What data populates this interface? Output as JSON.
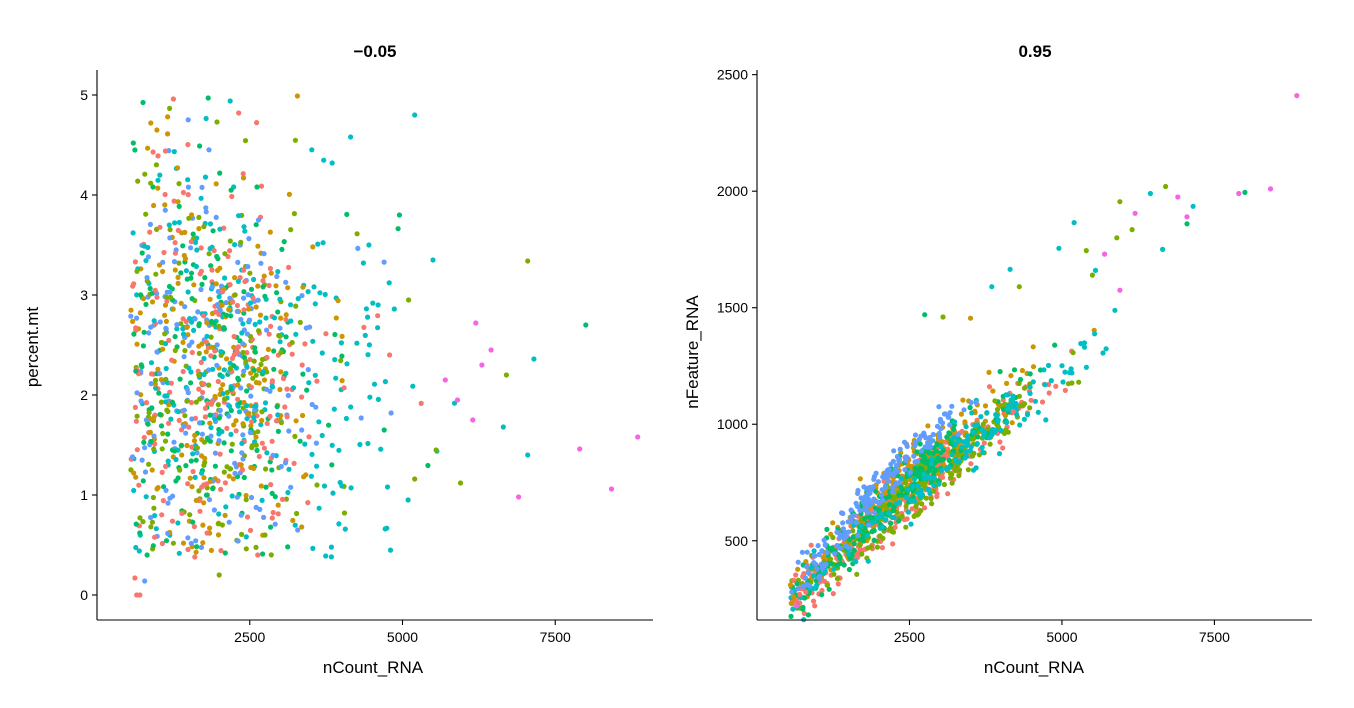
{
  "chart_data": [
    {
      "type": "scatter",
      "title": "−0.05",
      "xlabel": "nCount_RNA",
      "ylabel": "percent.mt",
      "xlim": [
        0,
        9100
      ],
      "ylim": [
        -0.25,
        5.25
      ],
      "xticks": [
        2500,
        5000,
        7500
      ],
      "xtick_labels": [
        "2500",
        "5000",
        "7500"
      ],
      "yticks": [
        0,
        1,
        2,
        3,
        4,
        5
      ],
      "ytick_labels": [
        "0",
        "1",
        "2",
        "3",
        "4",
        "5"
      ],
      "grid": false,
      "legend": "none",
      "colors": [
        "#F8766D",
        "#CD9600",
        "#7CAE00",
        "#00BE67",
        "#00BFC4",
        "#619CFF",
        "#F564E3"
      ],
      "points": [
        {
          "x": 8850,
          "y": 1.58,
          "c": 6
        },
        {
          "x": 8420,
          "y": 1.06,
          "c": 6
        },
        {
          "x": 7900,
          "y": 1.46,
          "c": 6
        },
        {
          "x": 6900,
          "y": 0.98,
          "c": 6
        },
        {
          "x": 6200,
          "y": 2.72,
          "c": 6
        },
        {
          "x": 6450,
          "y": 2.45,
          "c": 6
        },
        {
          "x": 6150,
          "y": 1.75,
          "c": 6
        },
        {
          "x": 5900,
          "y": 1.95,
          "c": 6
        },
        {
          "x": 5700,
          "y": 2.15,
          "c": 6
        },
        {
          "x": 6300,
          "y": 2.3,
          "c": 6
        },
        {
          "x": 7050,
          "y": 3.34,
          "c": 2
        },
        {
          "x": 8000,
          "y": 2.7,
          "c": 3
        },
        {
          "x": 7150,
          "y": 2.36,
          "c": 4
        },
        {
          "x": 7050,
          "y": 1.4,
          "c": 4
        },
        {
          "x": 6650,
          "y": 1.68,
          "c": 4
        },
        {
          "x": 6700,
          "y": 2.2,
          "c": 2
        },
        {
          "x": 5200,
          "y": 4.8,
          "c": 4
        },
        {
          "x": 4150,
          "y": 4.58,
          "c": 4
        },
        {
          "x": 3850,
          "y": 4.32,
          "c": 4
        },
        {
          "x": 4950,
          "y": 3.8,
          "c": 3
        },
        {
          "x": 3280,
          "y": 4.99,
          "c": 1
        },
        {
          "x": 1250,
          "y": 4.96,
          "c": 0
        },
        {
          "x": 1820,
          "y": 4.97,
          "c": 3
        },
        {
          "x": 2180,
          "y": 4.94,
          "c": 4
        },
        {
          "x": 2320,
          "y": 4.82,
          "c": 0
        },
        {
          "x": 980,
          "y": 4.65,
          "c": 1
        },
        {
          "x": 880,
          "y": 4.72,
          "c": 1
        },
        {
          "x": 1120,
          "y": 4.44,
          "c": 0
        },
        {
          "x": 1680,
          "y": 4.49,
          "c": 3
        },
        {
          "x": 620,
          "y": 4.45,
          "c": 3
        },
        {
          "x": 5950,
          "y": 1.12,
          "c": 2
        },
        {
          "x": 5550,
          "y": 1.45,
          "c": 2
        },
        {
          "x": 5200,
          "y": 1.16,
          "c": 2
        },
        {
          "x": 4700,
          "y": 1.65,
          "c": 3
        },
        {
          "x": 5100,
          "y": 2.95,
          "c": 2
        },
        {
          "x": 5500,
          "y": 3.35,
          "c": 4
        },
        {
          "x": 4450,
          "y": 3.5,
          "c": 4
        },
        {
          "x": 4600,
          "y": 2.9,
          "c": 4
        },
        {
          "x": 650,
          "y": 0.0,
          "c": 0
        },
        {
          "x": 700,
          "y": 0.0,
          "c": 0
        },
        {
          "x": 620,
          "y": 0.17,
          "c": 0
        },
        {
          "x": 780,
          "y": 0.14,
          "c": 5
        },
        {
          "x": 2000,
          "y": 0.2,
          "c": 2
        },
        {
          "x": 820,
          "y": 0.4,
          "c": 3
        },
        {
          "x": 1600,
          "y": 0.38,
          "c": 0
        },
        {
          "x": 2100,
          "y": 0.42,
          "c": 3
        },
        {
          "x": 2750,
          "y": 0.6,
          "c": 2
        },
        {
          "x": 3350,
          "y": 0.68,
          "c": 1
        },
        {
          "x": 4050,
          "y": 0.82,
          "c": 2
        },
        {
          "x": 3600,
          "y": 1.1,
          "c": 2
        },
        {
          "x": 600,
          "y": 1.22,
          "c": 1
        },
        {
          "x": 700,
          "y": 0.62,
          "c": 3
        }
      ],
      "clusters": [
        {
          "cx": 2000,
          "cy": 2.0,
          "sx": 750,
          "sy": 0.85,
          "n": 520
        },
        {
          "cx": 1700,
          "cy": 2.7,
          "sx": 650,
          "sy": 1.0,
          "n": 220
        },
        {
          "cx": 3100,
          "cy": 2.2,
          "sx": 1000,
          "sy": 0.9,
          "n": 230
        },
        {
          "cx": 1100,
          "cy": 2.4,
          "sx": 450,
          "sy": 1.2,
          "n": 170
        }
      ]
    },
    {
      "type": "scatter",
      "title": "0.95",
      "xlabel": "nCount_RNA",
      "ylabel": "nFeature_RNA",
      "xlim": [
        0,
        9100
      ],
      "ylim": [
        160,
        2520
      ],
      "xticks": [
        2500,
        5000,
        7500
      ],
      "xtick_labels": [
        "2500",
        "5000",
        "7500"
      ],
      "yticks": [
        500,
        1000,
        1500,
        2000,
        2500
      ],
      "ytick_labels": [
        "500",
        "1000",
        "1500",
        "2000",
        "2500"
      ],
      "grid": false,
      "legend": "none",
      "colors": [
        "#F8766D",
        "#CD9600",
        "#7CAE00",
        "#00BE67",
        "#00BFC4",
        "#619CFF",
        "#F564E3"
      ],
      "points": [
        {
          "x": 8850,
          "y": 2410,
          "c": 6
        },
        {
          "x": 8420,
          "y": 2010,
          "c": 6
        },
        {
          "x": 7900,
          "y": 1990,
          "c": 6
        },
        {
          "x": 8000,
          "y": 1995,
          "c": 3
        },
        {
          "x": 7150,
          "y": 1935,
          "c": 4
        },
        {
          "x": 7050,
          "y": 1860,
          "c": 3
        },
        {
          "x": 7050,
          "y": 1890,
          "c": 6
        },
        {
          "x": 6900,
          "y": 1975,
          "c": 6
        },
        {
          "x": 6700,
          "y": 2020,
          "c": 2
        },
        {
          "x": 6650,
          "y": 1750,
          "c": 4
        },
        {
          "x": 6450,
          "y": 1990,
          "c": 4
        },
        {
          "x": 6200,
          "y": 1905,
          "c": 6
        },
        {
          "x": 6150,
          "y": 1835,
          "c": 2
        },
        {
          "x": 5950,
          "y": 1955,
          "c": 2
        },
        {
          "x": 5900,
          "y": 1800,
          "c": 2
        },
        {
          "x": 5700,
          "y": 1730,
          "c": 6
        },
        {
          "x": 5200,
          "y": 1865,
          "c": 4
        },
        {
          "x": 5550,
          "y": 1660,
          "c": 4
        },
        {
          "x": 5500,
          "y": 1640,
          "c": 2
        },
        {
          "x": 5950,
          "y": 1575,
          "c": 6
        },
        {
          "x": 5400,
          "y": 1745,
          "c": 2
        },
        {
          "x": 4950,
          "y": 1755,
          "c": 4
        },
        {
          "x": 4150,
          "y": 1665,
          "c": 4
        },
        {
          "x": 4300,
          "y": 1590,
          "c": 2
        },
        {
          "x": 3850,
          "y": 1590,
          "c": 4
        },
        {
          "x": 2750,
          "y": 1470,
          "c": 3
        },
        {
          "x": 3050,
          "y": 1460,
          "c": 2
        },
        {
          "x": 3500,
          "y": 1455,
          "c": 1
        },
        {
          "x": 4200,
          "y": 1055,
          "c": 0
        },
        {
          "x": 3900,
          "y": 1100,
          "c": 2
        },
        {
          "x": 600,
          "y": 330,
          "c": 0
        },
        {
          "x": 550,
          "y": 310,
          "c": 1
        },
        {
          "x": 650,
          "y": 220,
          "c": 6
        },
        {
          "x": 700,
          "y": 270,
          "c": 0
        },
        {
          "x": 800,
          "y": 280,
          "c": 0
        },
        {
          "x": 600,
          "y": 260,
          "c": 1
        }
      ],
      "clusters": [
        {
          "a": 1500,
          "b": 300,
          "cx": 2400,
          "sx": 950,
          "sy": 55,
          "n": 420,
          "c": 0
        },
        {
          "a": 1300,
          "b": 390,
          "cx": 2500,
          "sx": 850,
          "sy": 55,
          "n": 220,
          "c": 1
        },
        {
          "a": 1700,
          "b": 270,
          "cx": 2700,
          "sx": 1000,
          "sy": 55,
          "n": 220,
          "c": 2
        },
        {
          "a": 1500,
          "b": 340,
          "cx": 2200,
          "sx": 900,
          "sy": 55,
          "n": 230,
          "c": 3
        },
        {
          "a": 1650,
          "b": 290,
          "cx": 3100,
          "sx": 1300,
          "sy": 60,
          "n": 170,
          "c": 4
        },
        {
          "a": 1320,
          "b": 470,
          "cx": 1900,
          "sx": 650,
          "sy": 45,
          "n": 170,
          "c": 5
        }
      ]
    }
  ]
}
